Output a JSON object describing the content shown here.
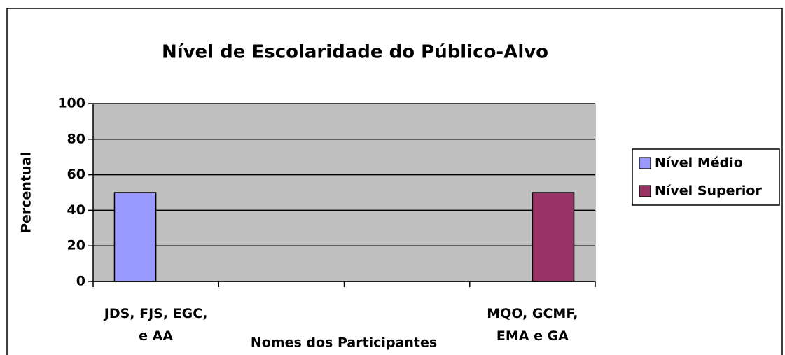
{
  "chart_data": {
    "type": "bar",
    "title": "Nível de Escolaridade do Público-Alvo",
    "x_label": "Nomes dos Participantes",
    "y_label": "Percentual",
    "categories": [
      "JDS, FJS, EGC,\ne AA",
      null,
      null,
      "MQO, GCMF,\nEMA e GA"
    ],
    "series": [
      {
        "name": "Nível Médio",
        "color": "#9999ff",
        "values": [
          50,
          null,
          null,
          null
        ]
      },
      {
        "name": "Nível Superior",
        "color": "#993366",
        "values": [
          null,
          null,
          null,
          50
        ]
      }
    ],
    "ylim": [
      0,
      100
    ],
    "yticks": [
      0,
      20,
      40,
      60,
      80,
      100
    ],
    "grid": true,
    "legend": "right"
  }
}
